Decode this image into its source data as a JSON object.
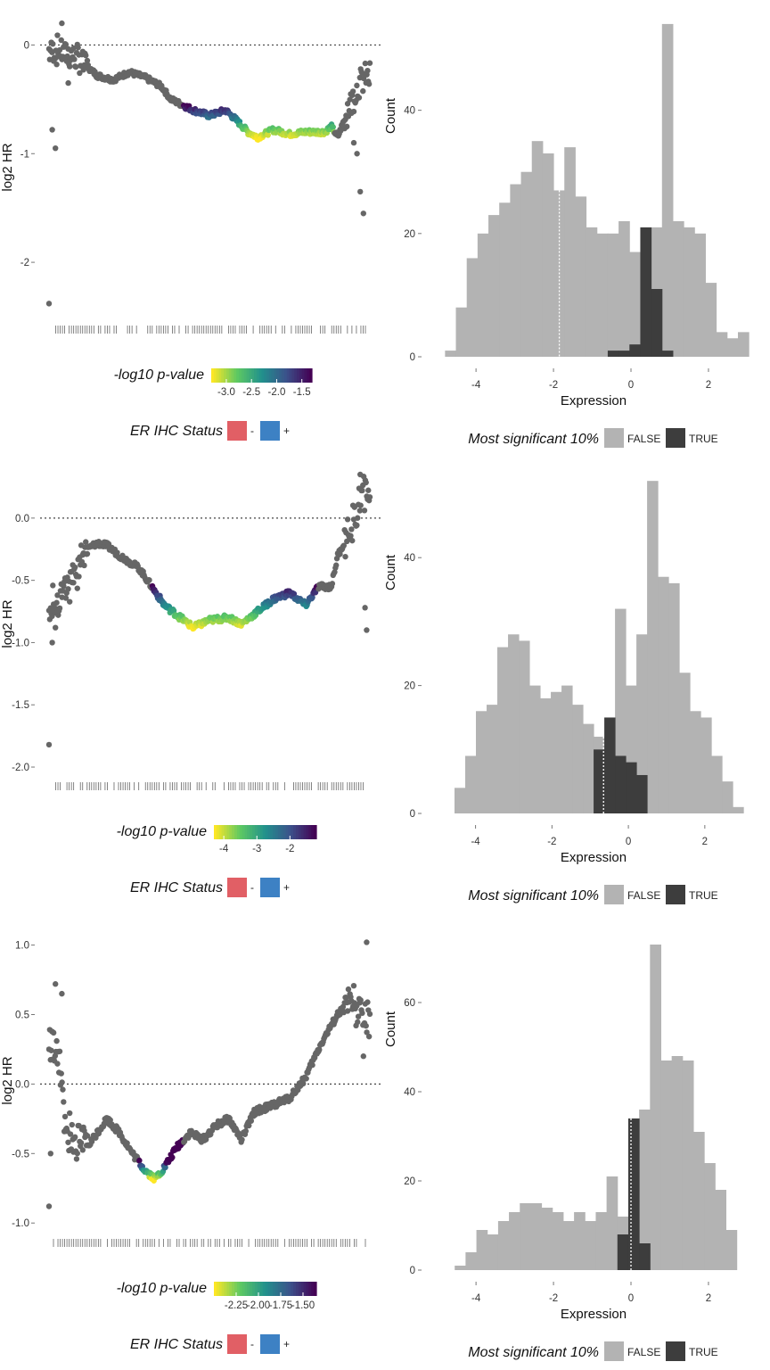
{
  "colors": {
    "gray_point": "#666666",
    "hist_false": "#b3b3b3",
    "hist_true": "#3d3d3d",
    "er_neg": "#e15f65",
    "er_pos": "#3d81c4",
    "viridis": [
      "#fde725",
      "#5ec962",
      "#21918c",
      "#3b528b",
      "#440154"
    ]
  },
  "chart_data": [
    {
      "type": "scatter",
      "ylabel": "log2 HR",
      "yticks": [
        0,
        -1,
        -2
      ],
      "yticklabels": [
        "0",
        "-1",
        "-2"
      ],
      "ylim": [
        -2.5,
        0.25
      ],
      "xlim": [
        0,
        1
      ],
      "hline": 0,
      "trend": [
        [
          0.0,
          -0.05
        ],
        [
          0.03,
          -0.05
        ],
        [
          0.07,
          -0.1
        ],
        [
          0.1,
          -0.15
        ],
        [
          0.12,
          -0.2
        ],
        [
          0.15,
          -0.28
        ],
        [
          0.2,
          -0.32
        ],
        [
          0.25,
          -0.25
        ],
        [
          0.3,
          -0.3
        ],
        [
          0.35,
          -0.38
        ],
        [
          0.38,
          -0.5
        ],
        [
          0.45,
          -0.6
        ],
        [
          0.5,
          -0.65
        ],
        [
          0.55,
          -0.6
        ],
        [
          0.58,
          -0.68
        ],
        [
          0.62,
          -0.8
        ],
        [
          0.65,
          -0.85
        ],
        [
          0.7,
          -0.78
        ],
        [
          0.75,
          -0.82
        ],
        [
          0.8,
          -0.8
        ],
        [
          0.86,
          -0.8
        ],
        [
          0.88,
          -0.75
        ],
        [
          0.9,
          -0.85
        ],
        [
          0.93,
          -0.6
        ],
        [
          0.96,
          -0.4
        ],
        [
          0.98,
          -0.3
        ]
      ],
      "sig_range": [
        0.42,
        0.89
      ],
      "outliers": [
        [
          0.0,
          -2.38
        ],
        [
          0.01,
          -0.78
        ],
        [
          0.02,
          -0.95
        ],
        [
          0.04,
          0.2
        ],
        [
          0.06,
          -0.35
        ],
        [
          0.97,
          -1.35
        ],
        [
          0.98,
          -1.55
        ],
        [
          0.96,
          -1.0
        ],
        [
          0.95,
          -0.9
        ]
      ],
      "colorbar": {
        "title": "-log10 p-value",
        "ticks": [
          -3.0,
          -2.5,
          -2.0,
          -1.5
        ],
        "ticklabels": [
          "-3.0",
          "-2.5",
          "-2.0",
          "-1.5"
        ],
        "range": [
          -3.3,
          -1.3
        ]
      },
      "shape_legend": {
        "title": "ER IHC Status",
        "items": [
          "-",
          "+"
        ]
      }
    },
    {
      "type": "bar",
      "xlabel": "Expression",
      "ylabel": "Count",
      "xticks": [
        -4,
        -2,
        0,
        2
      ],
      "xticklabels": [
        "-4",
        "-2",
        "0",
        "2"
      ],
      "yticks": [
        0,
        20,
        40
      ],
      "yticklabels": [
        "0",
        "20",
        "40"
      ],
      "ylim": [
        0,
        55
      ],
      "xlim": [
        -4.9,
        2.3
      ],
      "bin_start": -4.8,
      "bin_width": 0.28,
      "false_counts": [
        1,
        8,
        16,
        20,
        23,
        25,
        28,
        30,
        35,
        33,
        27,
        34,
        26,
        21,
        20,
        20,
        22,
        17,
        12,
        21,
        54,
        22,
        21,
        20,
        12,
        4,
        3,
        4
      ],
      "true_counts": [
        0,
        0,
        0,
        0,
        0,
        0,
        0,
        0,
        0,
        0,
        0,
        0,
        0,
        0,
        0,
        1,
        1,
        2,
        21,
        11,
        1,
        0,
        0,
        0,
        0,
        0,
        0,
        0
      ],
      "vline": -1.85,
      "legend": {
        "title": "Most significant 10%",
        "items": [
          "FALSE",
          "TRUE"
        ]
      }
    },
    {
      "type": "scatter",
      "ylabel": "log2 HR",
      "yticks": [
        0.0,
        -0.5,
        -1.0,
        -1.5,
        -2.0
      ],
      "yticklabels": [
        "0.0",
        "-0.5",
        "-1.0",
        "-1.5",
        "-2.0"
      ],
      "ylim": [
        -2.05,
        0.35
      ],
      "xlim": [
        0,
        1
      ],
      "hline": 0,
      "trend": [
        [
          0.0,
          -0.7
        ],
        [
          0.03,
          -0.65
        ],
        [
          0.06,
          -0.55
        ],
        [
          0.08,
          -0.5
        ],
        [
          0.1,
          -0.35
        ],
        [
          0.12,
          -0.25
        ],
        [
          0.15,
          -0.2
        ],
        [
          0.18,
          -0.22
        ],
        [
          0.22,
          -0.3
        ],
        [
          0.28,
          -0.4
        ],
        [
          0.32,
          -0.55
        ],
        [
          0.36,
          -0.7
        ],
        [
          0.4,
          -0.78
        ],
        [
          0.45,
          -0.88
        ],
        [
          0.5,
          -0.82
        ],
        [
          0.56,
          -0.8
        ],
        [
          0.6,
          -0.85
        ],
        [
          0.65,
          -0.75
        ],
        [
          0.7,
          -0.65
        ],
        [
          0.75,
          -0.6
        ],
        [
          0.8,
          -0.7
        ],
        [
          0.84,
          -0.55
        ],
        [
          0.88,
          -0.55
        ],
        [
          0.9,
          -0.3
        ],
        [
          0.93,
          -0.15
        ],
        [
          0.96,
          0.05
        ],
        [
          0.98,
          0.2
        ]
      ],
      "sig_range": [
        0.32,
        0.84
      ],
      "outliers": [
        [
          0.0,
          -1.82
        ],
        [
          0.01,
          -1.0
        ],
        [
          0.02,
          -0.88
        ],
        [
          0.985,
          -0.72
        ],
        [
          0.99,
          -0.9
        ],
        [
          0.97,
          0.35
        ]
      ],
      "colorbar": {
        "title": "-log10 p-value",
        "ticks": [
          -4,
          -3,
          -2
        ],
        "ticklabels": [
          "-4",
          "-3",
          "-2"
        ],
        "range": [
          -4.3,
          -1.2
        ]
      },
      "shape_legend": {
        "title": "ER IHC Status",
        "items": [
          "-",
          "+"
        ]
      }
    },
    {
      "type": "bar",
      "xlabel": "Expression",
      "ylabel": "Count",
      "xticks": [
        -4,
        -2,
        0,
        2
      ],
      "xticklabels": [
        "-4",
        "-2",
        "0",
        "2"
      ],
      "yticks": [
        0,
        20,
        40
      ],
      "yticklabels": [
        "0",
        "20",
        "40"
      ],
      "ylim": [
        0,
        53
      ],
      "xlim": [
        -4.9,
        2.4
      ],
      "bin_start": -4.55,
      "bin_width": 0.28,
      "false_counts": [
        4,
        9,
        16,
        17,
        26,
        28,
        27,
        20,
        18,
        19,
        20,
        17,
        14,
        12,
        10,
        32,
        20,
        28,
        52,
        37,
        36,
        22,
        16,
        15,
        9,
        5,
        1
      ],
      "true_counts": [
        0,
        0,
        0,
        0,
        0,
        0,
        0,
        0,
        0,
        0,
        0,
        0,
        0,
        10,
        15,
        9,
        8,
        6,
        0,
        0,
        0,
        0,
        0,
        0,
        0,
        0,
        0
      ],
      "vline": -0.65,
      "legend": {
        "title": "Most significant 10%",
        "items": [
          "FALSE",
          "TRUE"
        ]
      }
    },
    {
      "type": "scatter",
      "ylabel": "log2 HR",
      "yticks": [
        1.0,
        0.5,
        0.0,
        -0.5,
        -1.0
      ],
      "yticklabels": [
        "1.0",
        "0.5",
        "0.0",
        "-0.5",
        "-1.0"
      ],
      "ylim": [
        -1.05,
        1.1
      ],
      "xlim": [
        0,
        1
      ],
      "hline": 0,
      "trend": [
        [
          0.0,
          0.3
        ],
        [
          0.03,
          0.2
        ],
        [
          0.05,
          -0.3
        ],
        [
          0.08,
          -0.4
        ],
        [
          0.12,
          -0.45
        ],
        [
          0.15,
          -0.35
        ],
        [
          0.18,
          -0.25
        ],
        [
          0.22,
          -0.35
        ],
        [
          0.26,
          -0.5
        ],
        [
          0.3,
          -0.62
        ],
        [
          0.33,
          -0.68
        ],
        [
          0.36,
          -0.6
        ],
        [
          0.4,
          -0.45
        ],
        [
          0.44,
          -0.35
        ],
        [
          0.48,
          -0.4
        ],
        [
          0.52,
          -0.3
        ],
        [
          0.56,
          -0.25
        ],
        [
          0.6,
          -0.4
        ],
        [
          0.64,
          -0.2
        ],
        [
          0.7,
          -0.15
        ],
        [
          0.75,
          -0.1
        ],
        [
          0.8,
          0.05
        ],
        [
          0.85,
          0.3
        ],
        [
          0.9,
          0.5
        ],
        [
          0.95,
          0.6
        ],
        [
          0.98,
          0.45
        ]
      ],
      "sig_range": [
        0.28,
        0.42
      ],
      "outliers": [
        [
          0.0,
          -0.88
        ],
        [
          0.005,
          -0.5
        ],
        [
          0.02,
          0.72
        ],
        [
          0.04,
          0.65
        ],
        [
          0.99,
          1.02
        ],
        [
          0.98,
          0.2
        ]
      ],
      "colorbar": {
        "title": "-log10 p-value",
        "ticks": [
          -2.25,
          -2.0,
          -1.75,
          -1.5
        ],
        "ticklabels": [
          "-2.25",
          "-2.00",
          "-1.75",
          "-1.50"
        ],
        "range": [
          -2.5,
          -1.35
        ]
      },
      "shape_legend": {
        "title": "ER IHC Status",
        "items": [
          "-",
          "+"
        ]
      }
    },
    {
      "type": "bar",
      "xlabel": "Expression",
      "ylabel": "Count",
      "xticks": [
        -4,
        -2,
        0,
        2
      ],
      "xticklabels": [
        "-4",
        "-2",
        "0",
        "2"
      ],
      "yticks": [
        0,
        20,
        40,
        60
      ],
      "yticklabels": [
        "0",
        "20",
        "40",
        "60"
      ],
      "ylim": [
        0,
        76
      ],
      "xlim": [
        -4.9,
        2.3
      ],
      "bin_start": -4.55,
      "bin_width": 0.28,
      "false_counts": [
        1,
        4,
        9,
        8,
        11,
        13,
        15,
        15,
        14,
        13,
        11,
        13,
        11,
        13,
        21,
        12,
        20,
        36,
        73,
        47,
        48,
        47,
        31,
        24,
        18,
        9
      ],
      "true_counts": [
        0,
        0,
        0,
        0,
        0,
        0,
        0,
        0,
        0,
        0,
        0,
        0,
        0,
        0,
        0,
        8,
        34,
        6,
        0,
        0,
        0,
        0,
        0,
        0,
        0,
        0
      ],
      "vline": 0.0,
      "legend": {
        "title": "Most significant 10%",
        "items": [
          "FALSE",
          "TRUE"
        ]
      }
    }
  ]
}
